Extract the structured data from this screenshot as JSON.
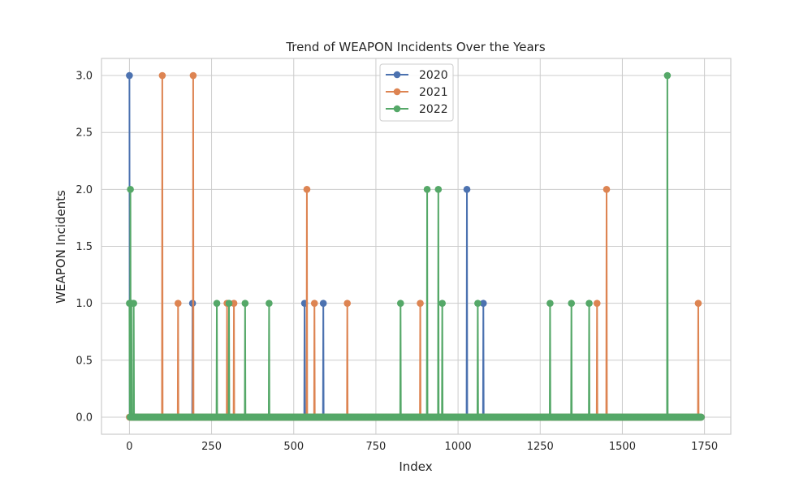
{
  "chart_data": {
    "type": "line",
    "title": "Trend of WEAPON Incidents Over the Years",
    "xlabel": "Index",
    "ylabel": "WEAPON Incidents",
    "xlim": [
      -85,
      1830
    ],
    "ylim": [
      -0.15,
      3.15
    ],
    "x_ticks": [
      0,
      250,
      500,
      750,
      1000,
      1250,
      1500,
      1750
    ],
    "y_ticks": [
      0.0,
      0.5,
      1.0,
      1.5,
      2.0,
      2.5,
      3.0
    ],
    "x_tick_labels": [
      "0",
      "250",
      "500",
      "750",
      "1000",
      "1250",
      "1500",
      "1750"
    ],
    "y_tick_labels": [
      "0.0",
      "0.5",
      "1.0",
      "1.5",
      "2.0",
      "2.5",
      "3.0"
    ],
    "grid": true,
    "legend_position": "top-center",
    "x_range": [
      0,
      1740
    ],
    "baseline": 0,
    "series": [
      {
        "name": "2020",
        "color": "#4c72b0",
        "points": [
          {
            "x": 0,
            "y": 3
          },
          {
            "x": 192,
            "y": 1
          },
          {
            "x": 533,
            "y": 1
          },
          {
            "x": 590,
            "y": 1
          },
          {
            "x": 1027,
            "y": 2
          },
          {
            "x": 1077,
            "y": 1
          }
        ]
      },
      {
        "name": "2021",
        "color": "#dd8452",
        "points": [
          {
            "x": 100,
            "y": 3
          },
          {
            "x": 148,
            "y": 1
          },
          {
            "x": 194,
            "y": 3
          },
          {
            "x": 297,
            "y": 1
          },
          {
            "x": 318,
            "y": 1
          },
          {
            "x": 540,
            "y": 2
          },
          {
            "x": 563,
            "y": 1
          },
          {
            "x": 663,
            "y": 1
          },
          {
            "x": 885,
            "y": 1
          },
          {
            "x": 1423,
            "y": 1
          },
          {
            "x": 1452,
            "y": 2
          },
          {
            "x": 1731,
            "y": 1
          }
        ]
      },
      {
        "name": "2022",
        "color": "#55a868",
        "points": [
          {
            "x": 0,
            "y": 1
          },
          {
            "x": 3,
            "y": 2
          },
          {
            "x": 6,
            "y": 1
          },
          {
            "x": 13,
            "y": 1
          },
          {
            "x": 266,
            "y": 1
          },
          {
            "x": 303,
            "y": 1
          },
          {
            "x": 352,
            "y": 1
          },
          {
            "x": 425,
            "y": 1
          },
          {
            "x": 825,
            "y": 1
          },
          {
            "x": 906,
            "y": 2
          },
          {
            "x": 940,
            "y": 2
          },
          {
            "x": 952,
            "y": 1
          },
          {
            "x": 1060,
            "y": 1
          },
          {
            "x": 1280,
            "y": 1
          },
          {
            "x": 1345,
            "y": 1
          },
          {
            "x": 1399,
            "y": 1
          },
          {
            "x": 1637,
            "y": 3
          }
        ]
      }
    ]
  }
}
